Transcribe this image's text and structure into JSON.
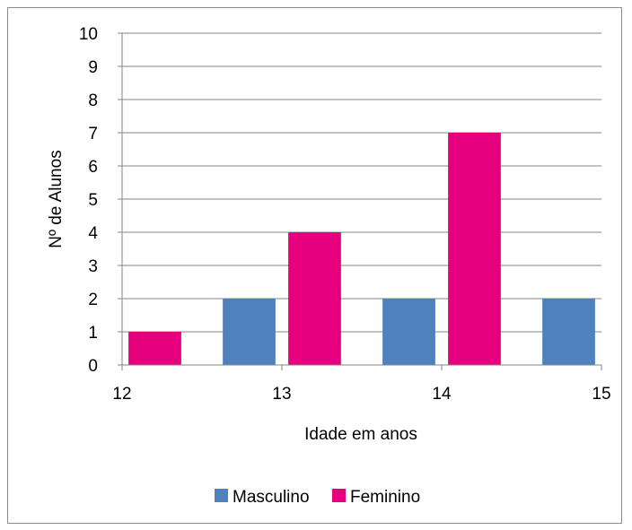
{
  "chart_data": {
    "type": "bar",
    "title": "",
    "xlabel": "Idade em anos",
    "ylabel": "Nº de Alunos",
    "xlim": [
      12,
      15
    ],
    "ylim": [
      0,
      10
    ],
    "x_ticks": [
      "12",
      "13",
      "14",
      "15"
    ],
    "y_ticks": [
      "0",
      "1",
      "2",
      "3",
      "4",
      "5",
      "6",
      "7",
      "8",
      "9",
      "10"
    ],
    "grid": true,
    "legend_position": "bottom",
    "series": [
      {
        "name": "Masculino",
        "color": "#4f81bd",
        "points": [
          {
            "x": 13,
            "value": 2
          },
          {
            "x": 14,
            "value": 2
          },
          {
            "x": 15,
            "value": 2
          }
        ]
      },
      {
        "name": "Feminino",
        "color": "#e6007e",
        "points": [
          {
            "x": 12,
            "value": 1
          },
          {
            "x": 13,
            "value": 4
          },
          {
            "x": 14,
            "value": 7
          }
        ]
      }
    ]
  }
}
